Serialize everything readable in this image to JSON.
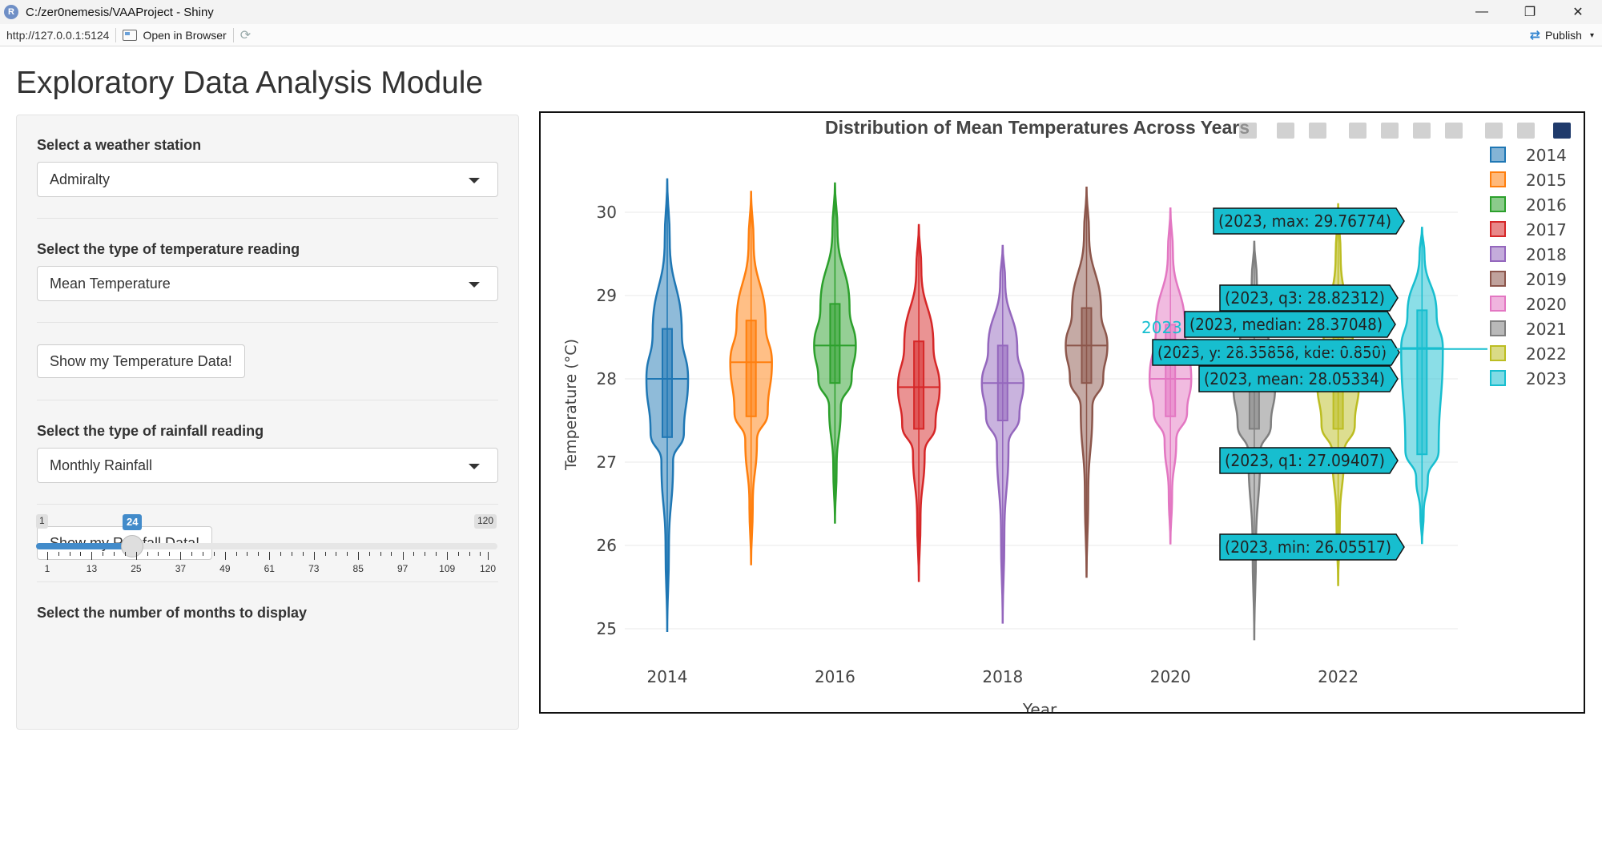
{
  "window": {
    "app_icon_letter": "R",
    "title": "C:/zer0nemesis/VAAProject - Shiny",
    "minimize": "—",
    "restore": "❐",
    "close": "✕"
  },
  "addressbar": {
    "url": "http://127.0.0.1:5124",
    "open_in_browser": "Open in Browser",
    "refresh_icon": "⟳",
    "publish": "Publish",
    "publish_icon": "⇄",
    "publish_caret": "▾"
  },
  "page": {
    "title": "Exploratory Data Analysis Module"
  },
  "sidebar": {
    "station_label": "Select a weather station",
    "station_value": "Admiralty",
    "temp_type_label": "Select the type of temperature reading",
    "temp_type_value": "Mean Temperature",
    "temp_button": "Show my Temperature Data!",
    "rain_type_label": "Select the type of rainfall reading",
    "rain_type_value": "Monthly Rainfall",
    "rain_button": "Show my Rainfall Data!",
    "months_label": "Select the number of months to display",
    "slider": {
      "min": "1",
      "max": "120",
      "value": "24",
      "ticks": [
        "1",
        "13",
        "25",
        "37",
        "49",
        "61",
        "73",
        "85",
        "97",
        "109",
        "120"
      ]
    }
  },
  "chart_data": {
    "type": "violin",
    "title": "Distribution of Mean Temperatures Across Years",
    "xlabel": "Year",
    "ylabel": "Temperature (°C)",
    "x_ticks": [
      "2014",
      "2016",
      "2018",
      "2020",
      "2022"
    ],
    "y_ticks": [
      "25",
      "26",
      "27",
      "28",
      "29",
      "30"
    ],
    "ylim": [
      24.9,
      30.45
    ],
    "grid": true,
    "legend_position": "top-right",
    "series": [
      {
        "name": "2014",
        "color": "#1f77b4",
        "min": 25.0,
        "q1": 27.3,
        "median": 28.0,
        "q3": 28.6,
        "max": 30.35,
        "mean": 27.9
      },
      {
        "name": "2015",
        "color": "#ff7f0e",
        "min": 25.8,
        "q1": 27.55,
        "median": 28.2,
        "q3": 28.7,
        "max": 30.2,
        "mean": 28.1
      },
      {
        "name": "2016",
        "color": "#2ca02c",
        "min": 26.3,
        "q1": 27.95,
        "median": 28.4,
        "q3": 28.9,
        "max": 30.3,
        "mean": 28.35
      },
      {
        "name": "2017",
        "color": "#d62728",
        "min": 25.6,
        "q1": 27.4,
        "median": 27.9,
        "q3": 28.45,
        "max": 29.8,
        "mean": 27.95
      },
      {
        "name": "2018",
        "color": "#9467bd",
        "min": 25.1,
        "q1": 27.5,
        "median": 27.95,
        "q3": 28.4,
        "max": 29.55,
        "mean": 27.85
      },
      {
        "name": "2019",
        "color": "#8c564b",
        "min": 25.65,
        "q1": 27.95,
        "median": 28.4,
        "q3": 28.85,
        "max": 30.25,
        "mean": 28.3
      },
      {
        "name": "2020",
        "color": "#e377c2",
        "min": 26.05,
        "q1": 27.55,
        "median": 28.0,
        "q3": 28.65,
        "max": 30.0,
        "mean": 28.0
      },
      {
        "name": "2021",
        "color": "#7f7f7f",
        "min": 24.9,
        "q1": 27.4,
        "median": 27.9,
        "q3": 28.4,
        "max": 29.6,
        "mean": 27.85
      },
      {
        "name": "2022",
        "color": "#bcbd22",
        "min": 25.55,
        "q1": 27.4,
        "median": 27.95,
        "q3": 28.5,
        "max": 30.05,
        "mean": 27.9
      },
      {
        "name": "2023",
        "color": "#17becf",
        "min": 26.05517,
        "q1": 27.09407,
        "median": 28.37048,
        "q3": 28.82312,
        "max": 29.76774,
        "mean": 28.05334
      }
    ],
    "hover": {
      "x_label": "2023",
      "labels": [
        "(2023, max: 29.76774)",
        "(2023, q3: 28.82312)",
        "(2023, median: 28.37048)",
        "(2023, y: 28.35858, kde: 0.850)",
        "(2023, mean: 28.05334)",
        "(2023, q1: 27.09407)",
        "(2023, min: 26.05517)"
      ],
      "label_color": "#17becf"
    }
  }
}
